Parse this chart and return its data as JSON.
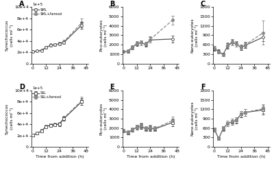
{
  "A_time": [
    0,
    4,
    8,
    12,
    16,
    20,
    24,
    28,
    44
  ],
  "A_SML_y": [
    21000,
    22000,
    23000,
    28000,
    32000,
    33000,
    35000,
    37000,
    68000
  ],
  "A_SML_e": [
    500,
    800,
    800,
    1500,
    1800,
    2000,
    2500,
    2500,
    6000
  ],
  "A_Aero_y": [
    21000,
    22000,
    23500,
    29000,
    33000,
    34000,
    36000,
    38500,
    72000
  ],
  "A_Aero_e": [
    500,
    800,
    800,
    1500,
    1800,
    2000,
    2500,
    3000,
    8000
  ],
  "B_time": [
    0,
    4,
    8,
    12,
    16,
    20,
    24,
    44
  ],
  "B_SML_y": [
    1250,
    1300,
    1700,
    2100,
    2200,
    2000,
    2500,
    2600
  ],
  "B_SML_e": [
    120,
    150,
    180,
    220,
    280,
    220,
    280,
    350
  ],
  "B_Aero_y": [
    1250,
    1350,
    1750,
    2150,
    2200,
    2050,
    2550,
    4600
  ],
  "B_Aero_e": [
    120,
    150,
    180,
    220,
    280,
    220,
    300,
    450
  ],
  "C_time": [
    0,
    4,
    8,
    12,
    16,
    20,
    24,
    28,
    44
  ],
  "C_SML_y": [
    480,
    380,
    290,
    560,
    660,
    620,
    510,
    580,
    840
  ],
  "C_SML_e": [
    70,
    60,
    55,
    80,
    90,
    80,
    75,
    80,
    120
  ],
  "C_Aero_y": [
    490,
    370,
    280,
    580,
    680,
    630,
    520,
    600,
    980
  ],
  "C_Aero_e": [
    70,
    60,
    55,
    80,
    100,
    85,
    75,
    90,
    380
  ],
  "D_time": [
    0,
    4,
    8,
    12,
    16,
    20,
    24,
    28,
    44
  ],
  "D_SSL_y": [
    21000,
    24000,
    28000,
    36000,
    38000,
    39000,
    40000,
    50000,
    80000
  ],
  "D_SSL_e": [
    700,
    1000,
    1200,
    2000,
    2500,
    2500,
    3000,
    3500,
    6000
  ],
  "D_Aero_y": [
    21000,
    24500,
    29000,
    37000,
    38500,
    40000,
    41000,
    51000,
    82000
  ],
  "D_Aero_e": [
    700,
    1000,
    1200,
    2000,
    2500,
    2500,
    3000,
    3500,
    7000
  ],
  "E_time": [
    0,
    4,
    8,
    12,
    16,
    20,
    24,
    28,
    44
  ],
  "E_SSL_y": [
    1700,
    1500,
    1800,
    2100,
    2200,
    1900,
    2000,
    1900,
    2600
  ],
  "E_SSL_e": [
    180,
    180,
    180,
    230,
    280,
    230,
    280,
    230,
    380
  ],
  "E_Aero_y": [
    1700,
    1550,
    1850,
    2150,
    2250,
    1950,
    2050,
    1950,
    2800
  ],
  "E_Aero_e": [
    180,
    180,
    180,
    230,
    280,
    230,
    280,
    230,
    400
  ],
  "F_time": [
    0,
    4,
    8,
    12,
    16,
    20,
    24,
    28,
    44
  ],
  "F_SSL_y": [
    560,
    270,
    580,
    750,
    800,
    850,
    1050,
    1100,
    1180
  ],
  "F_SSL_e": [
    65,
    50,
    75,
    85,
    95,
    95,
    95,
    110,
    140
  ],
  "F_Aero_y": [
    560,
    275,
    585,
    755,
    805,
    860,
    1055,
    1105,
    1220
  ],
  "F_Aero_e": [
    65,
    50,
    75,
    85,
    95,
    95,
    95,
    110,
    140
  ],
  "col": "#888888",
  "col_dark": "#555555"
}
